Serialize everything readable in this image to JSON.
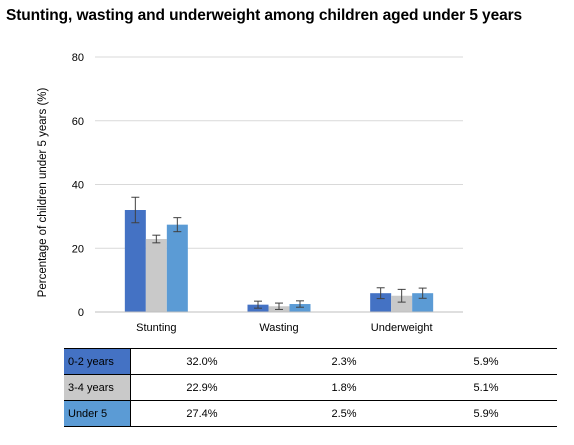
{
  "chart_data": {
    "type": "bar",
    "title": "Stunting, wasting and underweight among children aged under 5 years",
    "ylabel": "Percentage of children under 5 years (%)",
    "xlabel": "",
    "ylim": [
      0,
      80
    ],
    "yticks": [
      0,
      20,
      40,
      60,
      80
    ],
    "grid": true,
    "legend": "data table below chart",
    "categories": [
      "Stunting",
      "Wasting",
      "Underweight"
    ],
    "series": [
      {
        "name": "0-2 years",
        "color": "#4472C4",
        "values": [
          32.0,
          2.3,
          5.9
        ],
        "error": [
          [
            28.0,
            36.0
          ],
          [
            1.2,
            3.4
          ],
          [
            4.2,
            7.6
          ]
        ],
        "labels": [
          "32.0%",
          "2.3%",
          "5.9%"
        ]
      },
      {
        "name": "3-4 years",
        "color": "#C9C9C9",
        "values": [
          22.9,
          1.8,
          5.1
        ],
        "error": [
          [
            21.7,
            24.1
          ],
          [
            0.8,
            2.8
          ],
          [
            3.1,
            7.1
          ]
        ],
        "labels": [
          "22.9%",
          "1.8%",
          "5.1%"
        ]
      },
      {
        "name": "Under 5",
        "color": "#5B9BD5",
        "values": [
          27.4,
          2.5,
          5.9
        ],
        "error": [
          [
            25.2,
            29.6
          ],
          [
            1.5,
            3.5
          ],
          [
            4.3,
            7.5
          ]
        ],
        "labels": [
          "27.4%",
          "2.5%",
          "5.9%"
        ]
      }
    ]
  }
}
